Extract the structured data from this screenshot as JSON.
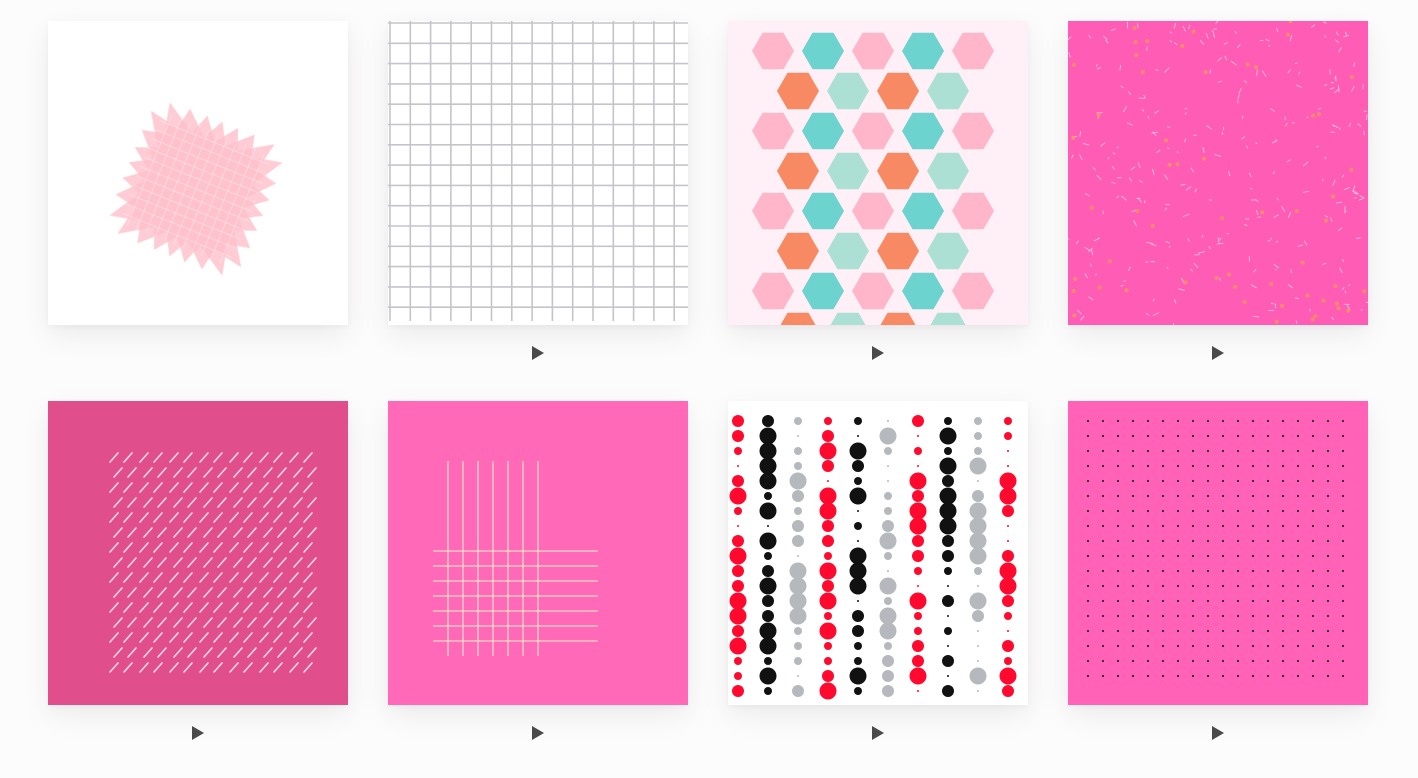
{
  "gallery": {
    "tiles": [
      {
        "name": "pink-starburst-pattern",
        "background": "#ffffff",
        "accent": "#ffc0cb",
        "play_button": false
      },
      {
        "name": "gray-grid-pattern",
        "background": "#ffffff",
        "accent": "#c4c4cc",
        "play_button": true
      },
      {
        "name": "hexagon-pattern",
        "background": "#fff0f8",
        "accent": "#6dd3cf",
        "play_button": true
      },
      {
        "name": "confetti-pattern",
        "background": "#ff5cb5",
        "accent": "#ffd6e8",
        "play_button": true
      },
      {
        "name": "dash-pattern",
        "background": "#e04e8c",
        "accent": "#ffd6e4",
        "play_button": true
      },
      {
        "name": "crossing-lines-pattern",
        "background": "#ff69b8",
        "accent": "#ffd9c4",
        "play_button": true
      },
      {
        "name": "dot-columns-pattern",
        "background": "#ffffff",
        "accent": "#ff0a2e",
        "play_button": true
      },
      {
        "name": "dot-grid-pattern",
        "background": "#ff62b6",
        "accent": "#2b2b2b",
        "play_button": true
      }
    ],
    "play_icon": "play-triangle-icon",
    "play_color": "#4a4a4a"
  }
}
